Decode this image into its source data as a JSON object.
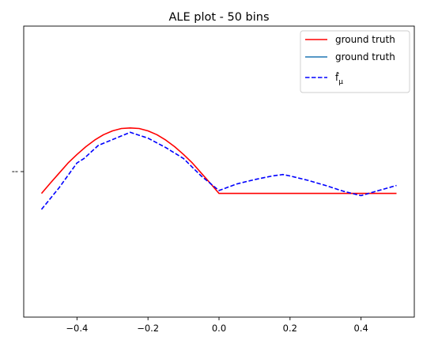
{
  "chart_data": {
    "type": "line",
    "title": "ALE plot - 50 bins",
    "xlabel": "",
    "ylabel": "",
    "xlim": [
      -0.55,
      0.55
    ],
    "ylim": [
      -1.0,
      1.0
    ],
    "x_ticks": [
      "−0.4",
      "−0.2",
      "0.0",
      "0.2",
      "0.4"
    ],
    "x_tick_values": [
      -0.4,
      -0.2,
      0.0,
      0.2,
      0.4
    ],
    "y_ticks": [
      "--"
    ],
    "y_tick_values": [
      0.0
    ],
    "grid": false,
    "legend_position": "upper-right",
    "series": [
      {
        "name": "ground truth",
        "color": "#ff0000",
        "style": "solid",
        "x": [
          -0.5,
          -0.475,
          -0.45,
          -0.425,
          -0.4,
          -0.375,
          -0.35,
          -0.325,
          -0.3,
          -0.275,
          -0.25,
          -0.225,
          -0.2,
          -0.175,
          -0.15,
          -0.125,
          -0.1,
          -0.075,
          -0.05,
          -0.025,
          0.0,
          0.5
        ],
        "y": [
          -0.15,
          -0.079,
          -0.01,
          0.059,
          0.118,
          0.171,
          0.217,
          0.254,
          0.28,
          0.296,
          0.3,
          0.296,
          0.28,
          0.254,
          0.217,
          0.171,
          0.118,
          0.059,
          -0.01,
          -0.079,
          -0.15,
          -0.15
        ]
      },
      {
        "name": "ground truth",
        "color": "#1f77b4",
        "style": "solid",
        "x": [],
        "y": []
      },
      {
        "name": "f̂_μ",
        "legend_label": "f̂",
        "legend_sub": "μ",
        "color": "#0000ff",
        "style": "dashed",
        "x": [
          -0.5,
          -0.45,
          -0.4,
          -0.38,
          -0.34,
          -0.3,
          -0.25,
          -0.2,
          -0.15,
          -0.1,
          -0.05,
          0.0,
          0.05,
          0.1,
          0.15,
          0.18,
          0.2,
          0.25,
          0.3,
          0.35,
          0.4,
          0.45,
          0.5
        ],
        "y": [
          -0.26,
          -0.11,
          0.06,
          0.09,
          0.18,
          0.22,
          0.27,
          0.23,
          0.165,
          0.09,
          -0.03,
          -0.13,
          -0.085,
          -0.055,
          -0.03,
          -0.02,
          -0.03,
          -0.06,
          -0.095,
          -0.135,
          -0.165,
          -0.13,
          -0.095
        ]
      }
    ]
  }
}
